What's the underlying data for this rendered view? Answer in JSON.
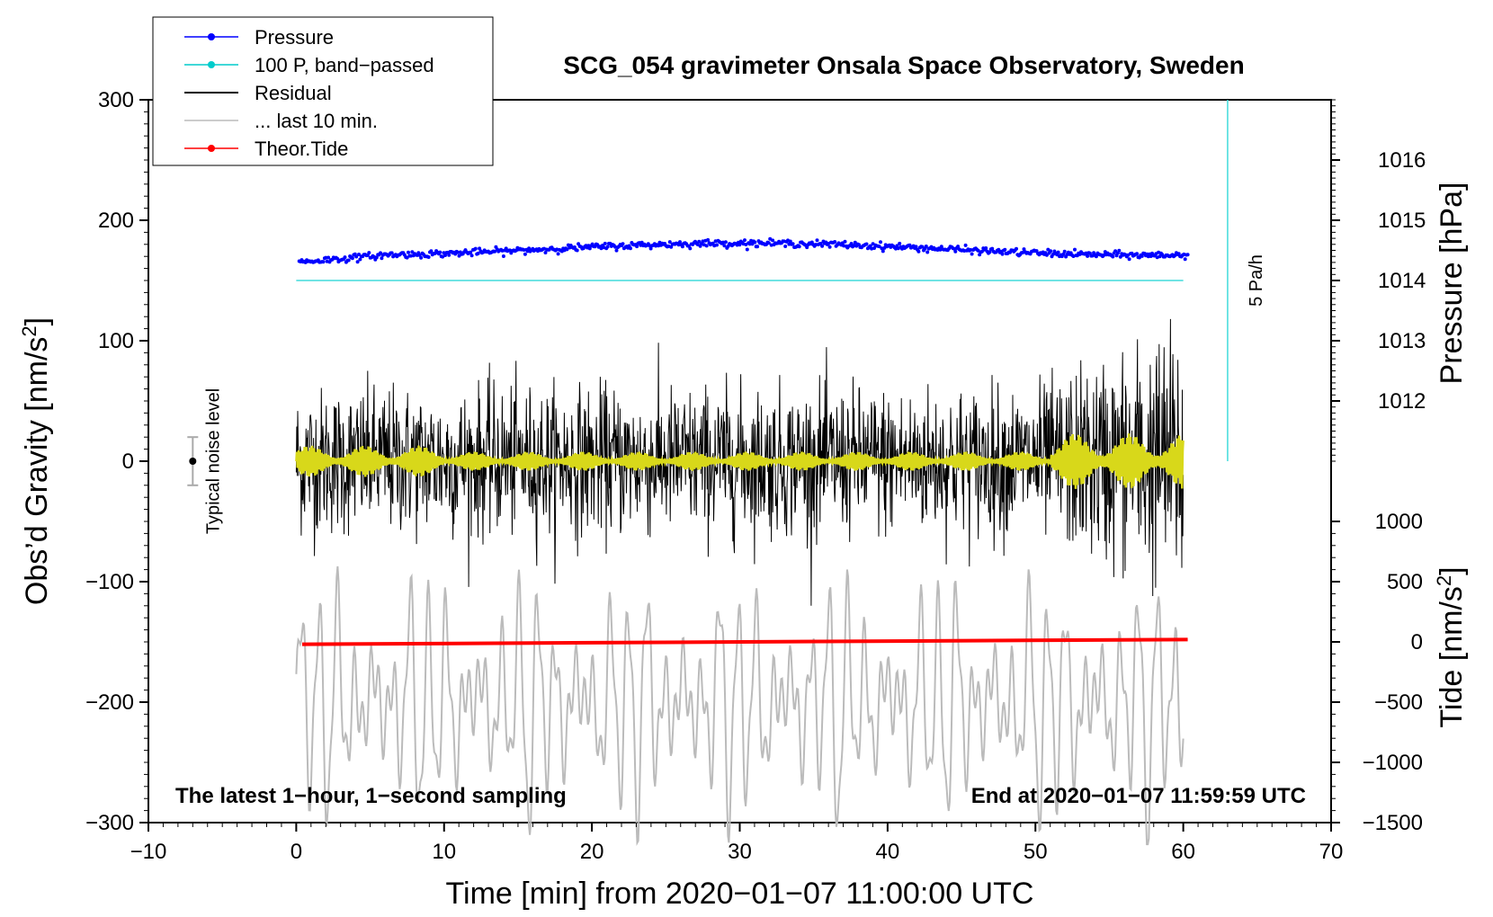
{
  "chart_data": {
    "type": "line",
    "title": "SCG_054 gravimeter Onsala Space Observatory, Sweden",
    "xlabel": "Time [min] from 2020−01−07 11:00:00 UTC",
    "ylabel_left": "Obs’d Gravity [nm/s",
    "ylabel_left_sup": "2",
    "ylabel_left_end": "]",
    "ylabel_right_pressure": "Pressure [hPa]",
    "ylabel_right_tide": "Tide [nm/s",
    "ylabel_right_tide_sup": "2",
    "ylabel_right_tide_end": "]",
    "xlim": [
      -10,
      70
    ],
    "ylim": [
      -300,
      300
    ],
    "xticks": [
      -10,
      0,
      10,
      20,
      30,
      40,
      50,
      60,
      70
    ],
    "xtick_labels": [
      "−10",
      "0",
      "10",
      "20",
      "30",
      "40",
      "50",
      "60",
      "70"
    ],
    "yticks": [
      300,
      200,
      100,
      0,
      -100,
      -200,
      -300
    ],
    "ytick_labels": [
      "300",
      "200",
      "100",
      "0",
      "−100",
      "−200",
      "−300"
    ],
    "pressure_axis": {
      "ticks": [
        1016,
        1015,
        1014,
        1013,
        1012
      ],
      "tick_labels": [
        "1016",
        "1015",
        "1014",
        "1013",
        "1012"
      ],
      "gravity_equiv": [
        250,
        200,
        150,
        100,
        50
      ]
    },
    "tide_axis": {
      "ticks": [
        1000,
        500,
        0,
        -500,
        -1000,
        -1500
      ],
      "tick_labels": [
        "1000",
        "500",
        "0",
        "−500",
        "−1000",
        "−1500"
      ],
      "gravity_equiv": [
        -50,
        -100,
        -150,
        -200,
        -250,
        -300
      ]
    },
    "legend": [
      {
        "label": "Pressure",
        "color": "#0000ff",
        "marker": true
      },
      {
        "label": "100 P, band−passed",
        "color": "#00cccc",
        "marker": true
      },
      {
        "label": "Residual",
        "color": "#000000",
        "marker": false
      },
      {
        "label": "... last 10 min.",
        "color": "#bbbbbb",
        "marker": false
      },
      {
        "label": "Theor.Tide",
        "color": "#ff0000",
        "marker": true
      }
    ],
    "series": [
      {
        "name": "Pressure",
        "color": "#0000ff",
        "x_range": [
          0.2,
          60.3
        ],
        "y_start": 168,
        "y_peak": 181,
        "y_end": 173
      },
      {
        "name": "100 P, band-passed",
        "color": "#40dcdc",
        "x_range": [
          0,
          60
        ],
        "y": 150
      },
      {
        "name": "Residual",
        "color": "#000000",
        "x_range": [
          0,
          60
        ],
        "amplitude": 60,
        "center": 0
      },
      {
        "name": "Residual band-passed",
        "color": "#d8d81a",
        "x_range": [
          0,
          60
        ],
        "amplitude": 10,
        "center": 0
      },
      {
        "name": "... last 10 min.",
        "color": "#bbbbbb",
        "x_range": [
          0,
          60
        ],
        "center": -200,
        "amplitude": 75
      },
      {
        "name": "Theor.Tide",
        "color": "#ff0000",
        "x_range": [
          0.4,
          60.3
        ],
        "y_start": -152,
        "y_end": -148
      }
    ],
    "noise_marker": {
      "x": -7,
      "y": 0,
      "error": 20,
      "label": "Typical noise level"
    },
    "rate_marker": {
      "x": 63,
      "y_top": 300,
      "y_bottom": 0,
      "label": "5 Pa/h"
    },
    "footer_left": "The latest 1−hour, 1−second sampling",
    "footer_right": "End at 2020−01−07 11:59:59 UTC"
  }
}
